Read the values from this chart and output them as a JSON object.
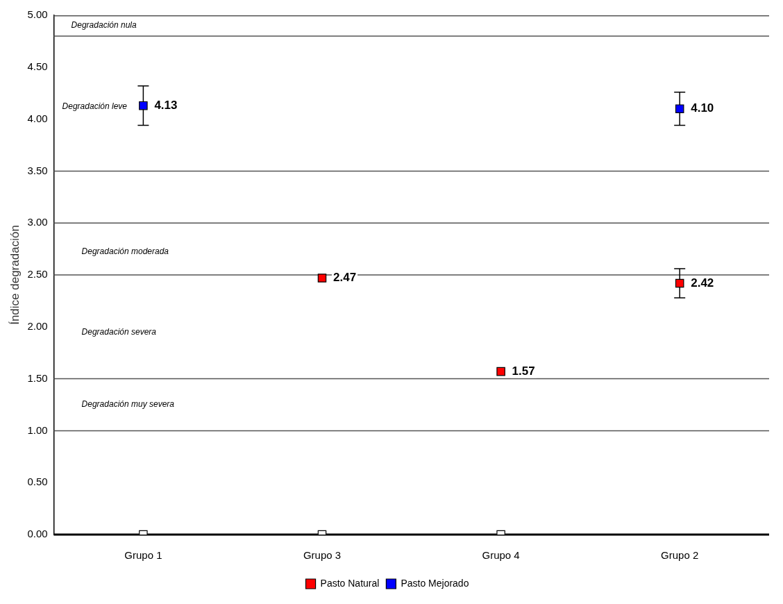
{
  "chart_data": {
    "type": "scatter",
    "ylabel": "Índice degradación",
    "categories": [
      "Grupo 1",
      "Grupo 3",
      "Grupo 4",
      "Grupo 2"
    ],
    "ylim": [
      0,
      5
    ],
    "yticks": [
      {
        "value": 0,
        "label": "0.00"
      },
      {
        "value": 0.5,
        "label": "0.50"
      },
      {
        "value": 1,
        "label": "1.00"
      },
      {
        "value": 1.5,
        "label": "1.50"
      },
      {
        "value": 2,
        "label": "2.00"
      },
      {
        "value": 2.5,
        "label": "2.50"
      },
      {
        "value": 3,
        "label": "3.00"
      },
      {
        "value": 3.5,
        "label": "3.50"
      },
      {
        "value": 4,
        "label": "4.00"
      },
      {
        "value": 4.5,
        "label": "4.50"
      },
      {
        "value": 5,
        "label": "5.00"
      }
    ],
    "grid": false,
    "legend": "bottom",
    "marker": "square",
    "series": [
      {
        "name": "Pasto Natural",
        "color": "#ff0000",
        "values": [
          null,
          2.47,
          1.57,
          2.42
        ],
        "errors": [
          null,
          null,
          null,
          0.14
        ],
        "value_labels": [
          null,
          "2.47",
          "1.57",
          "2.42"
        ]
      },
      {
        "name": "Pasto Mejorado",
        "color": "#0000ff",
        "values": [
          4.13,
          null,
          null,
          4.1
        ],
        "errors": [
          0.19,
          null,
          null,
          0.16
        ],
        "value_labels": [
          "4.13",
          null,
          null,
          "4.10"
        ]
      },
      {
        "color": "#ffffff",
        "values": [
          0,
          0,
          0,
          null
        ]
      }
    ],
    "ref_lines": [
      {
        "axis": "y",
        "value": 4.8
      },
      {
        "axis": "y",
        "value": 3.5
      },
      {
        "axis": "y",
        "value": 3
      },
      {
        "axis": "y",
        "value": 2.5
      },
      {
        "axis": "y",
        "value": 1.5
      },
      {
        "axis": "y",
        "value": 1
      }
    ],
    "annotations": [
      "Degradación nula",
      "Degradación leve",
      "Degradación moderada",
      "Degradación severa",
      "Degradación muy severa"
    ]
  }
}
